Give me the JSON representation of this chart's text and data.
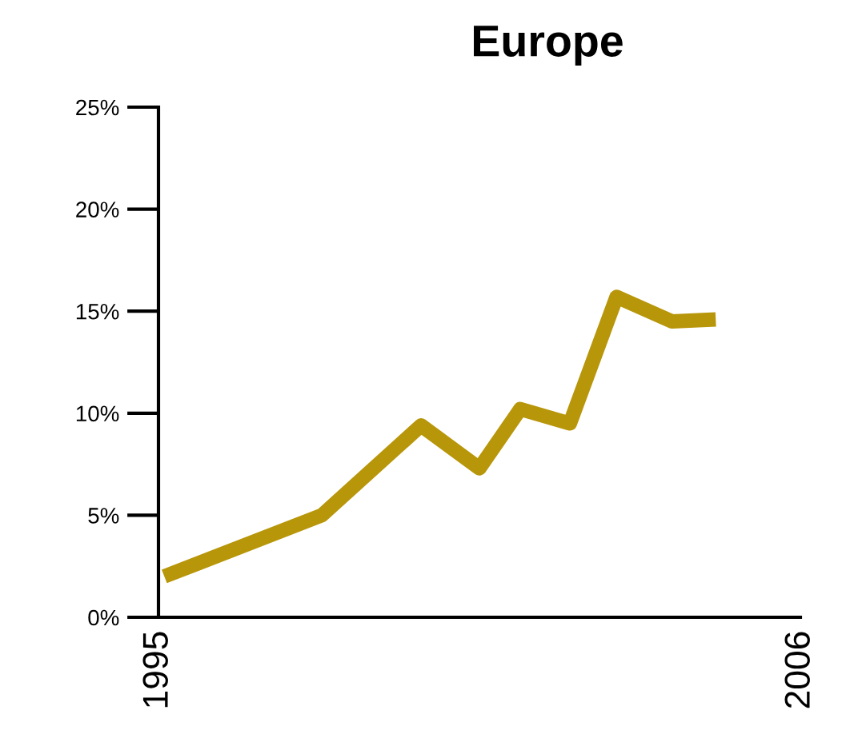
{
  "chart_data": {
    "type": "line",
    "title": "Europe",
    "x": [
      1995.1,
      1997.8,
      1999.5,
      2000.5,
      2001.2,
      2002.05,
      2002.85,
      2003.8,
      2004.55
    ],
    "series": [
      {
        "color": "#b8960a",
        "values": [
          2.0,
          5.0,
          9.4,
          7.3,
          10.2,
          9.5,
          15.7,
          14.5,
          14.6
        ]
      }
    ],
    "xlim": [
      1995,
      2006
    ],
    "xticks": [
      1995,
      2006
    ],
    "ylim": [
      0,
      25
    ],
    "yticks": [
      {
        "value": 0,
        "label": "0%"
      },
      {
        "value": 5,
        "label": "5%"
      },
      {
        "value": 10,
        "label": "10%"
      },
      {
        "value": 15,
        "label": "15%"
      },
      {
        "value": 20,
        "label": "20%"
      },
      {
        "value": 25,
        "label": "25%"
      }
    ],
    "grid": false,
    "legend": false,
    "marker": "none",
    "line_style": "solid"
  }
}
